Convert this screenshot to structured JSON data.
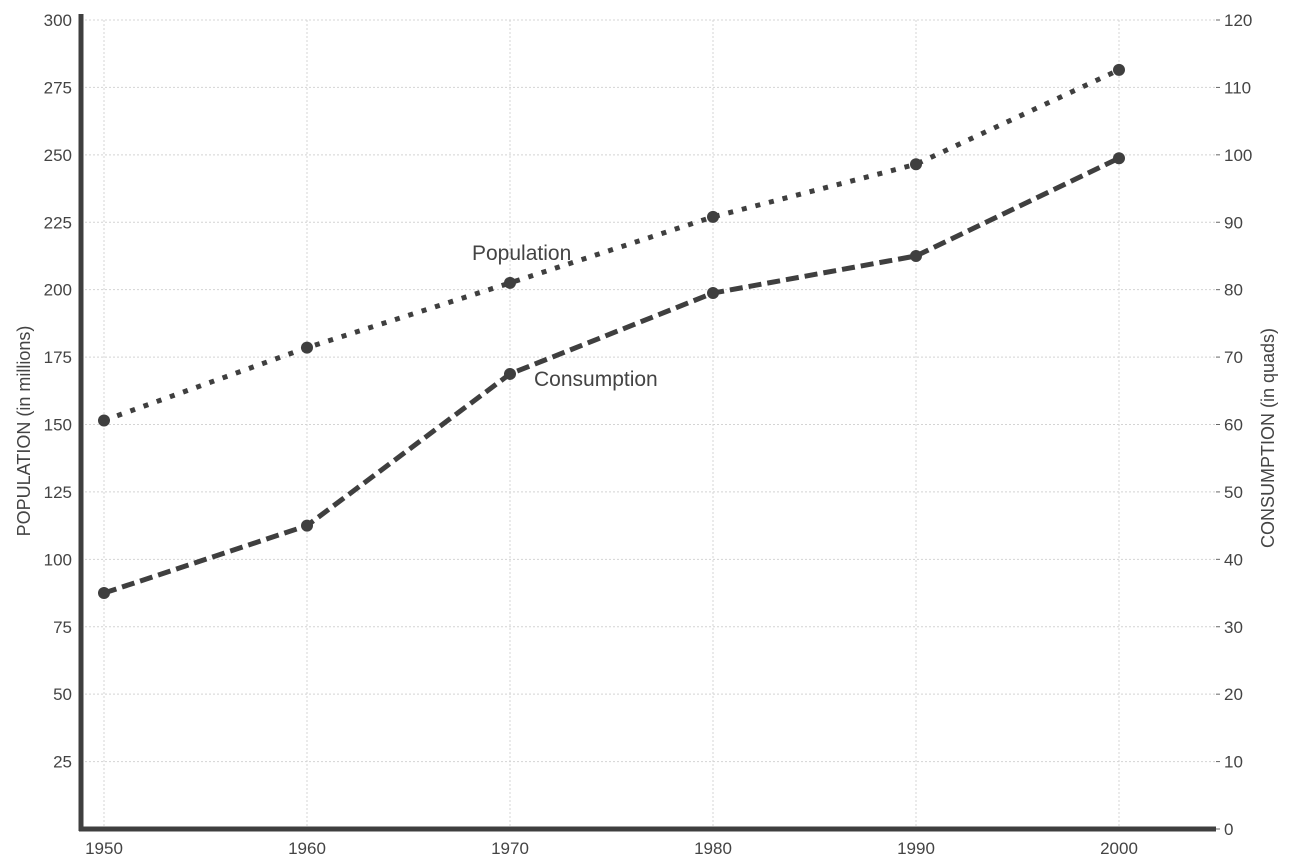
{
  "chart_data": {
    "type": "line",
    "x": [
      1950,
      1960,
      1970,
      1980,
      1990,
      2000
    ],
    "xlim": [
      1950,
      2000
    ],
    "x_ticks": [
      "1950",
      "1960",
      "1970",
      "1980",
      "1990",
      "2000"
    ],
    "left_axis": {
      "label": "POPULATION (in millions)",
      "ylim": [
        0,
        300
      ],
      "ticks": [
        "25",
        "50",
        "75",
        "100",
        "125",
        "150",
        "175",
        "200",
        "225",
        "250",
        "275",
        "300"
      ]
    },
    "right_axis": {
      "label": "CONSUMPTION  (in quads)",
      "ylim": [
        0,
        120
      ],
      "ticks": [
        "0",
        "10",
        "20",
        "30",
        "40",
        "50",
        "60",
        "70",
        "80",
        "90",
        "100",
        "110",
        "120"
      ]
    },
    "series": [
      {
        "name": "Population",
        "axis": "left",
        "style": "dotted",
        "values": [
          151.5,
          178.5,
          202.5,
          227,
          246.5,
          281.5
        ]
      },
      {
        "name": "Consumption",
        "axis": "right",
        "style": "dashed",
        "values": [
          35,
          45,
          67.5,
          79.5,
          85,
          99.5
        ]
      }
    ],
    "grid": true,
    "colors": {
      "line": "#3f3f3f",
      "grid": "#d4d4d4",
      "text": "#444444"
    }
  }
}
